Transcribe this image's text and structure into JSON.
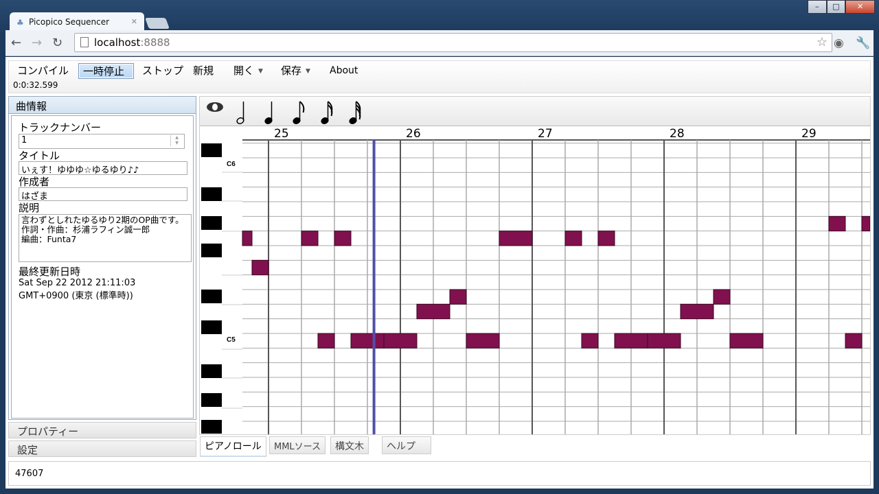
{
  "browser": {
    "tab_title": "Picopico Sequencer",
    "url_host": "localhost",
    "url_port": ":8888",
    "icons": [
      "back-arrow-icon",
      "forward-arrow-icon",
      "reload-icon",
      "page-icon",
      "star-icon",
      "eye-icon",
      "wrench-icon"
    ]
  },
  "menu": {
    "compile": "コンパイル",
    "pause": "一時停止",
    "stop": "ストップ",
    "new": "新規",
    "open": "開く",
    "save": "保存",
    "about": "About",
    "time": "0:0:32.599"
  },
  "song_info": {
    "header": "曲情報",
    "track_number_label": "トラックナンバー",
    "track_number": "1",
    "title_label": "タイトル",
    "title": "いぇす！ゆゆゆ☆ゆるゆり♪♪",
    "author_label": "作成者",
    "author": "はざま",
    "description_label": "説明",
    "description": "言わずとしれたゆるゆり2期のOP曲です。\n作詞・作曲：杉浦ラフィン誠一郎\n編曲：Funta7",
    "updated_label": "最終更新日時",
    "updated_line1": "Sat Sep 22 2012 21:11:03",
    "updated_line2": "GMT+0900 (東京 (標準時))"
  },
  "accordion": {
    "properties": "プロパティー",
    "settings": "設定"
  },
  "note_toolbar": [
    "whole-note-icon",
    "half-note-icon",
    "quarter-note-icon",
    "eighth-note-icon",
    "sixteenth-note-icon",
    "thirty-second-note-icon"
  ],
  "piano_roll": {
    "bars": [
      "25",
      "26",
      "27",
      "28",
      "29"
    ],
    "key_labels": {
      "C6": "C6",
      "C5": "C5"
    },
    "note_color": "#80114e",
    "playhead_color": "#5050a8",
    "playhead_position_sixteenths_from_bar25": 12.8,
    "notes": [
      {
        "pitch": "G5",
        "start": -4,
        "length": 2
      },
      {
        "pitch": "F5",
        "start": -2,
        "length": 2
      },
      {
        "pitch": "G5",
        "start": 4,
        "length": 2
      },
      {
        "pitch": "C5",
        "start": 6,
        "length": 2
      },
      {
        "pitch": "G5",
        "start": 8,
        "length": 2
      },
      {
        "pitch": "C5",
        "start": 10,
        "length": 4
      },
      {
        "pitch": "C5",
        "start": 14,
        "length": 4
      },
      {
        "pitch": "D5",
        "start": 18,
        "length": 4
      },
      {
        "pitch": "D#5",
        "start": 22,
        "length": 2
      },
      {
        "pitch": "C5",
        "start": 24,
        "length": 4
      },
      {
        "pitch": "G5",
        "start": 28,
        "length": 4
      },
      {
        "pitch": "G5",
        "start": 36,
        "length": 2
      },
      {
        "pitch": "C5",
        "start": 38,
        "length": 2
      },
      {
        "pitch": "G5",
        "start": 40,
        "length": 2
      },
      {
        "pitch": "C5",
        "start": 42,
        "length": 4
      },
      {
        "pitch": "C5",
        "start": 46,
        "length": 4
      },
      {
        "pitch": "D5",
        "start": 50,
        "length": 4
      },
      {
        "pitch": "D#5",
        "start": 54,
        "length": 2
      },
      {
        "pitch": "C5",
        "start": 56,
        "length": 4
      },
      {
        "pitch": "G#5",
        "start": 68,
        "length": 2
      },
      {
        "pitch": "C5",
        "start": 70,
        "length": 2
      },
      {
        "pitch": "G#5",
        "start": 72,
        "length": 2
      }
    ]
  },
  "tabs": [
    "ピアノロール",
    "MMLソース",
    "構文木",
    "ヘルプ"
  ],
  "status": "47607"
}
